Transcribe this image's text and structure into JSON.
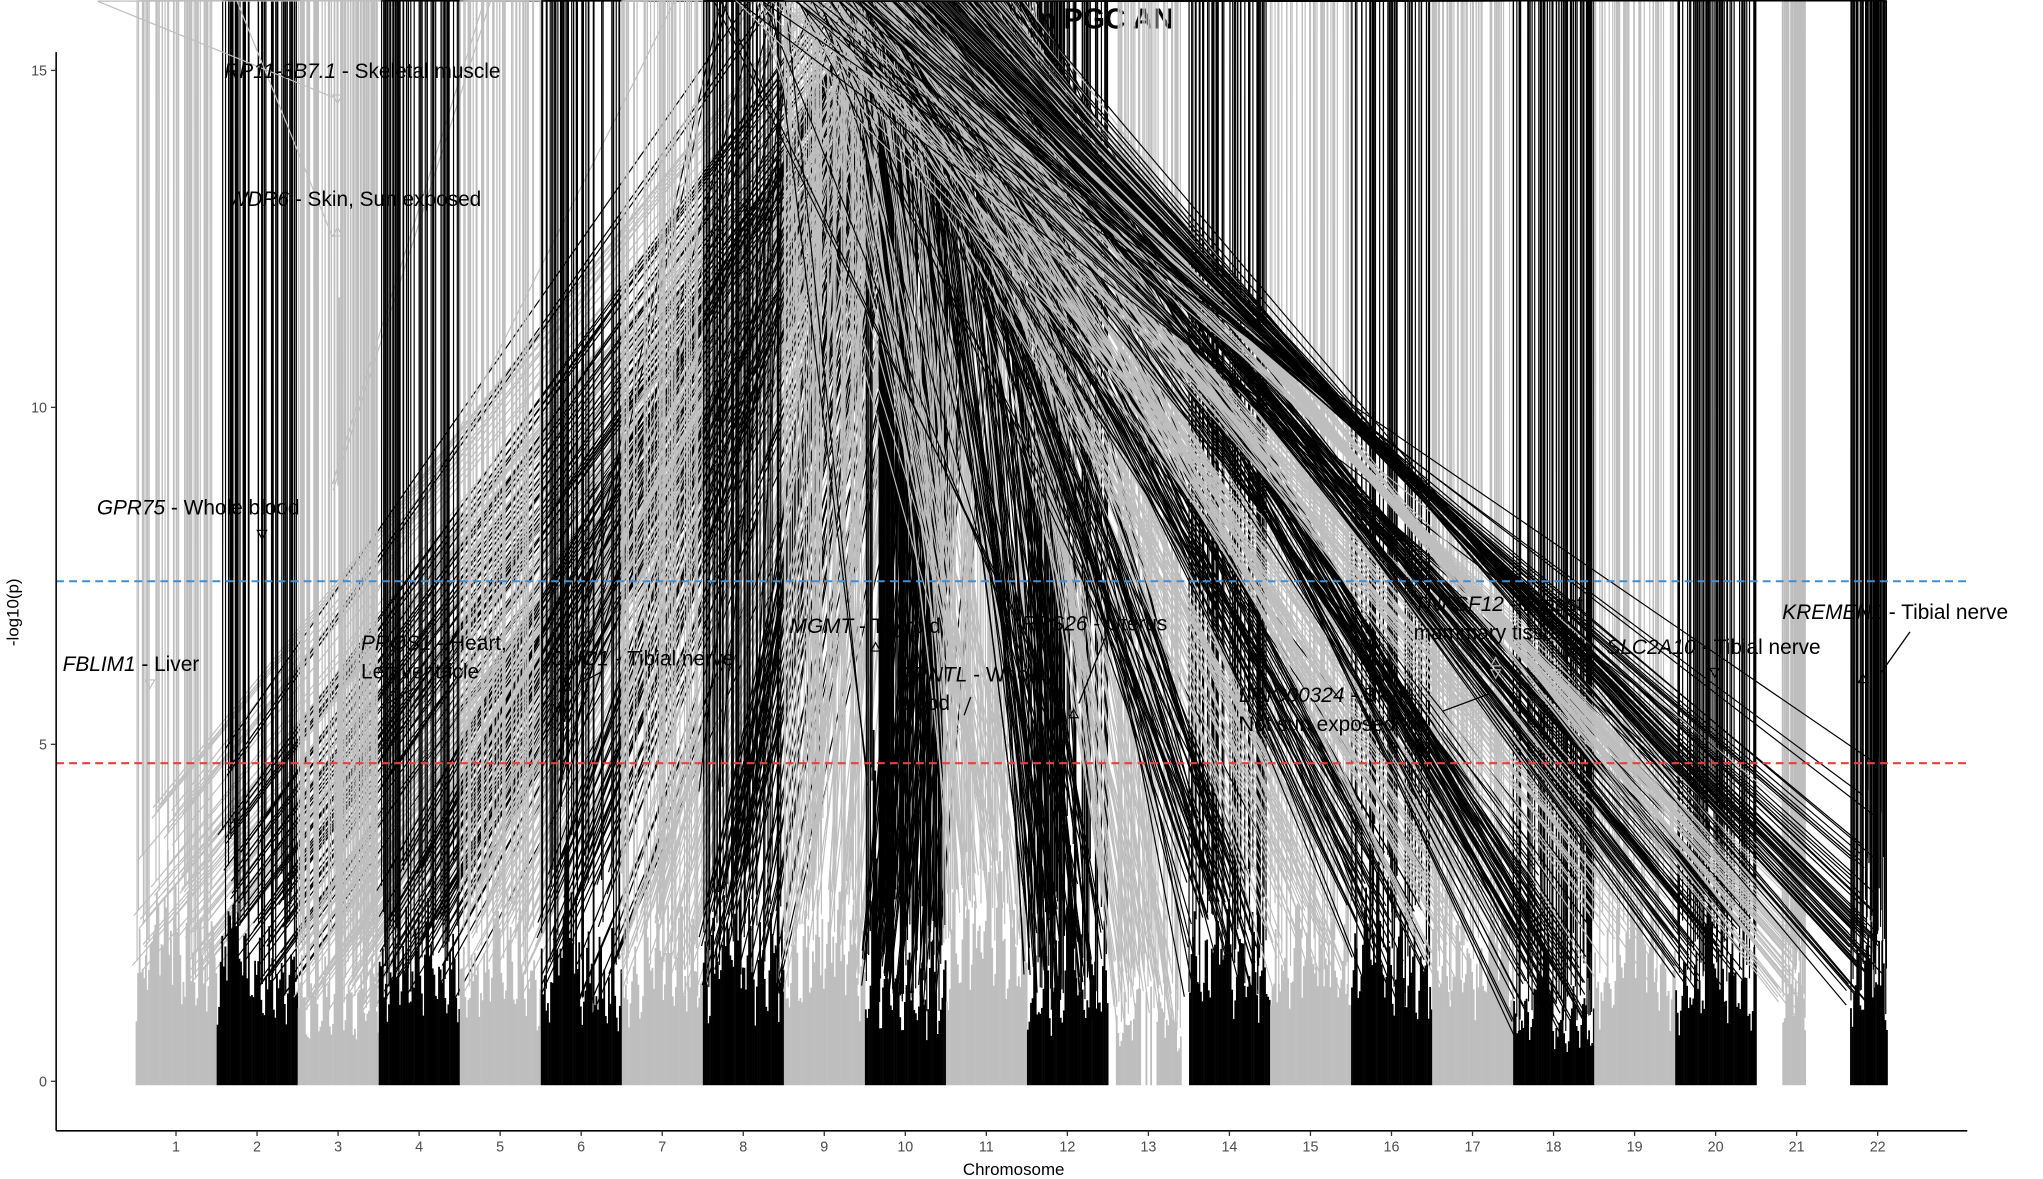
{
  "chart_data": {
    "type": "scatter",
    "subtype": "manhattan",
    "title": "S-PrediXcan in PGC AN",
    "xlabel": "Chromosome",
    "ylabel": "-log10(p)",
    "ylim": [
      0,
      15.5
    ],
    "yticks": [
      0,
      5,
      10,
      15
    ],
    "categories": [
      "1",
      "2",
      "3",
      "4",
      "5",
      "6",
      "7",
      "8",
      "9",
      "10",
      "11",
      "12",
      "13",
      "14",
      "15",
      "16",
      "17",
      "18",
      "19",
      "20",
      "21",
      "22"
    ],
    "peak_values": [
      5.9,
      8.1,
      14.6,
      3.2,
      3.9,
      5.9,
      3.4,
      4.3,
      4.4,
      6.4,
      5.3,
      5.45,
      4.0,
      4.2,
      3.9,
      4.2,
      6.2,
      3.8,
      4.6,
      6.1,
      4.2,
      5.97
    ],
    "colors": {
      "odd_chromosomes": "#bebebe",
      "even_chromosomes": "#000000",
      "bonferroni_line": "#3a8fd6",
      "suggestive_line": "#e8413c"
    },
    "thresholds": [
      {
        "value": 7.42,
        "color": "#3a8fd6",
        "style": "dashed"
      },
      {
        "value": 4.72,
        "color": "#e8413c",
        "style": "dashed"
      }
    ],
    "markers": [
      "triangle-up",
      "triangle-down"
    ],
    "grid": false,
    "annotations": [
      {
        "gene": "RP11-3B7.1",
        "label": " - Skeletal muscle",
        "label2": "",
        "chromosome": 3,
        "value": 14.58,
        "marker": "triangle-down"
      },
      {
        "gene": "WDR6",
        "label": " - Skin, Sun exposed",
        "label2": "",
        "chromosome": 3,
        "value": 12.6,
        "marker": "triangle-up"
      },
      {
        "gene": "GPR75",
        "label": " - Whole blood",
        "label2": "",
        "chromosome": 2,
        "value": 8.12,
        "marker": "triangle-down"
      },
      {
        "gene": "FBLIM1",
        "label": " - Liver",
        "label2": "",
        "chromosome": 1,
        "value": 5.9,
        "marker": "triangle-down"
      },
      {
        "gene": "PROS1",
        "label": " - Heart,",
        "label2": "Left ventricle",
        "chromosome": 3,
        "value": 5.49,
        "marker": "triangle-down"
      },
      {
        "gene": "CLIC1",
        "label": " - Tibial nerve",
        "label2": "",
        "chromosome": 6,
        "value": 5.86,
        "marker": "triangle-up"
      },
      {
        "gene": "MGMT",
        "label": " - Thyroid",
        "label2": "",
        "chromosome": 10,
        "value": 6.44,
        "marker": "triangle-up"
      },
      {
        "gene": "ARNTL",
        "label": " - Whole",
        "label2": "blood",
        "chromosome": 11,
        "value": 5.28,
        "marker": "triangle-up"
      },
      {
        "gene": "RPS26",
        "label": " - Uterus",
        "label2": "",
        "chromosome": 12,
        "value": 5.45,
        "marker": "triangle-up"
      },
      {
        "gene": "TNFSF12",
        "label": " - Breast",
        "label2": "mammary tissue",
        "chromosome": 17,
        "value": 6.22,
        "marker": "triangle-up"
      },
      {
        "gene": "LINC00324",
        "label": " - Skin,",
        "label2": "Not sun exposed",
        "chromosome": 17,
        "value": 6.05,
        "marker": "triangle-down"
      },
      {
        "gene": "SLC2A10",
        "label": " - Tibial nerve",
        "label2": "",
        "chromosome": 20,
        "value": 6.07,
        "marker": "triangle-down"
      },
      {
        "gene": "KREMEN1",
        "label": " - Tibial nerve",
        "label2": "",
        "chromosome": 22,
        "value": 5.97,
        "marker": "triangle-up"
      }
    ]
  }
}
